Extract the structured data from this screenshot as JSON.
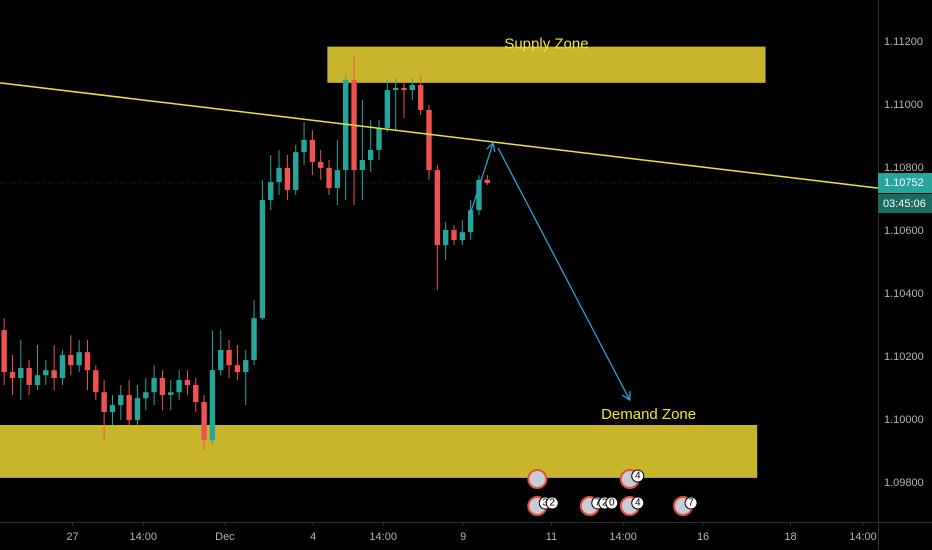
{
  "chart_data": {
    "type": "candlestick",
    "ylim": [
      1.09676,
      1.11333
    ],
    "xlim": [
      -0.5,
      104.9
    ],
    "yticks": [
      {
        "value": 1.098,
        "label": "1.09800"
      },
      {
        "value": 1.1,
        "label": "1.10000"
      },
      {
        "value": 1.102,
        "label": "1.10200"
      },
      {
        "value": 1.104,
        "label": "1.10400"
      },
      {
        "value": 1.106,
        "label": "1.10600"
      },
      {
        "value": 1.108,
        "label": "1.10800"
      },
      {
        "value": 1.11,
        "label": "1.11000"
      },
      {
        "value": 1.112,
        "label": "1.11200"
      }
    ],
    "xticks": [
      {
        "value": 8.2,
        "label": "27"
      },
      {
        "value": 16.7,
        "label": "14:00"
      },
      {
        "value": 26.5,
        "label": "Dec"
      },
      {
        "value": 37.1,
        "label": "4"
      },
      {
        "value": 45.5,
        "label": "14:00"
      },
      {
        "value": 55.1,
        "label": "9"
      },
      {
        "value": 65.7,
        "label": "11"
      },
      {
        "value": 74.3,
        "label": "14:00"
      },
      {
        "value": 83.9,
        "label": "16"
      },
      {
        "value": 94.4,
        "label": "18"
      },
      {
        "value": 103.1,
        "label": "14:00"
      }
    ],
    "grid": false,
    "up_color": "#26a69a",
    "down_color": "#ef5350",
    "open": [
      1.10285,
      1.10152,
      1.10133,
      1.10165,
      1.10111,
      1.10142,
      1.10158,
      1.10133,
      1.10206,
      1.10174,
      1.10215,
      1.10158,
      1.10088,
      1.10025,
      1.10047,
      1.10079,
      1.1,
      1.10069,
      1.10088,
      1.10133,
      1.10079,
      1.10088,
      1.10127,
      1.10111,
      1.10057,
      1.09936,
      1.10158,
      1.10222,
      1.10174,
      1.10152,
      1.1019,
      1.10323,
      1.10698,
      1.10755,
      1.108,
      1.1073,
      1.1085,
      1.10889,
      1.10819,
      1.108,
      1.10736,
      1.10793,
      1.11079,
      1.10793,
      1.10825,
      1.10857,
      1.10927,
      1.11047,
      1.11054,
      1.11047,
      1.11063,
      1.10984,
      1.10793,
      1.10555,
      1.10603,
      1.10571,
      1.10596,
      1.10666,
      1.10762
    ],
    "high": [
      1.10323,
      1.10206,
      1.10254,
      1.1019,
      1.10238,
      1.1019,
      1.10238,
      1.10222,
      1.10269,
      1.10254,
      1.10254,
      1.10174,
      1.10127,
      1.10079,
      1.10111,
      1.10127,
      1.10111,
      1.10133,
      1.10174,
      1.10158,
      1.10127,
      1.10158,
      1.10158,
      1.10133,
      1.10079,
      1.10285,
      1.10285,
      1.10254,
      1.10238,
      1.10222,
      1.10381,
      1.10762,
      1.10841,
      1.10857,
      1.10841,
      1.10873,
      1.10946,
      1.1092,
      1.10857,
      1.10825,
      1.10889,
      1.11095,
      1.11158,
      1.11016,
      1.10952,
      1.10952,
      1.11079,
      1.11085,
      1.11073,
      1.11085,
      1.11095,
      1.11,
      1.10809,
      1.10628,
      1.10619,
      1.10635,
      1.10698,
      1.10777,
      1.10777
    ],
    "low": [
      1.10111,
      1.10079,
      1.10063,
      1.10079,
      1.10095,
      1.10111,
      1.10095,
      1.10111,
      1.10142,
      1.10152,
      1.10095,
      1.10063,
      1.09936,
      1.09984,
      1.1,
      1.09984,
      1.09984,
      1.10031,
      1.10047,
      1.10031,
      1.10031,
      1.10063,
      1.10079,
      1.10025,
      1.09904,
      1.0992,
      1.10142,
      1.10133,
      1.10127,
      1.10047,
      1.10174,
      1.10317,
      1.10666,
      1.10714,
      1.10698,
      1.10714,
      1.10809,
      1.10777,
      1.10762,
      1.10714,
      1.10682,
      1.10698,
      1.10682,
      1.10698,
      1.10787,
      1.10825,
      1.10914,
      1.1092,
      1.10958,
      1.11016,
      1.10968,
      1.10762,
      1.10412,
      1.10508,
      1.10555,
      1.10555,
      1.10571,
      1.1065,
      1.10746
    ],
    "close": [
      1.10152,
      1.10133,
      1.10165,
      1.10111,
      1.10142,
      1.10158,
      1.10133,
      1.10206,
      1.10174,
      1.10215,
      1.10158,
      1.10088,
      1.10025,
      1.10047,
      1.10079,
      1.1,
      1.10069,
      1.10088,
      1.10133,
      1.10079,
      1.10088,
      1.10127,
      1.10111,
      1.10057,
      1.09936,
      1.10158,
      1.10222,
      1.10174,
      1.10152,
      1.1019,
      1.10323,
      1.10698,
      1.10755,
      1.108,
      1.1073,
      1.1085,
      1.10889,
      1.10819,
      1.108,
      1.10736,
      1.10793,
      1.11079,
      1.10793,
      1.10825,
      1.10857,
      1.10927,
      1.11047,
      1.11054,
      1.11047,
      1.11063,
      1.10984,
      1.10793,
      1.10555,
      1.10603,
      1.10571,
      1.10596,
      1.10666,
      1.10762,
      1.10752
    ],
    "last_price": 1.10752,
    "countdown": "03:45:06",
    "zones": [
      {
        "label": "Supply Zone",
        "top": 1.11185,
        "bottom": 1.1107,
        "x0": 38.8,
        "x1": 91.4,
        "color": "#c9b52c"
      },
      {
        "label": "Demand Zone",
        "top": 1.09984,
        "bottom": 1.09816,
        "x0": -0.5,
        "x1": 90.4,
        "color": "#c9b52c"
      }
    ],
    "trendline": {
      "x": [
        -0.5,
        104.9
      ],
      "y": [
        1.1107,
        1.10736
      ],
      "color": "#f0e23a"
    },
    "arrows": [
      {
        "x": [
          55.9,
          58.7
        ],
        "y": [
          1.1065,
          1.10879
        ],
        "color": "#2aa3d6"
      },
      {
        "x": [
          59.3,
          75.1
        ],
        "y": [
          1.10863,
          1.10063
        ],
        "color": "#2aa3d6"
      }
    ],
    "events": [
      {
        "x": 64.0,
        "badges": [
          "3",
          "2"
        ]
      },
      {
        "x": 70.3,
        "badges": [
          "7",
          "2",
          "0"
        ]
      },
      {
        "x": 75.1,
        "badges": [
          "4"
        ]
      },
      {
        "x": 81.5,
        "badges": [
          "7"
        ]
      }
    ],
    "events_top": [
      {
        "x": 64.0,
        "badges": []
      },
      {
        "x": 75.1,
        "badges": [
          "4"
        ]
      }
    ]
  }
}
